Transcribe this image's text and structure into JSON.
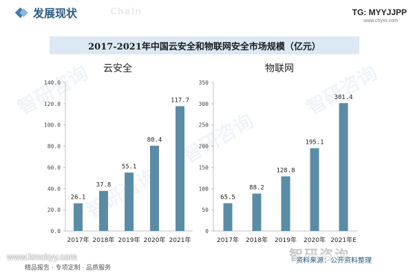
{
  "header": {
    "section_title": "发展现状",
    "watermark_chain": "Chain",
    "tg_label": "TG: MYYJJPP",
    "site": "www.chyxx.com"
  },
  "chart_title": "2017-2021年中国云安全和物联网安全市场规模（亿元）",
  "watermark": "智研咨询",
  "footer": {
    "left_url": "www.kmckyy.com",
    "left_tagline": "精品报告 · 专项定制 · 品质服务",
    "brand": "智研咨询",
    "source": "资料来源：公开资料整理"
  },
  "colors": {
    "bar": "#5b8ca6",
    "axis": "#bfbfbf",
    "title_bg": "#dce9f5"
  },
  "chart_data": [
    {
      "type": "bar",
      "title": "云安全",
      "categories": [
        "2017年",
        "2018年",
        "2019年",
        "2020年",
        "2021年"
      ],
      "values": [
        26.1,
        37.8,
        55.1,
        80.4,
        117.7
      ],
      "value_labels": [
        "26.1",
        "37.8",
        "55.1",
        "80.4",
        "117.7"
      ],
      "ylim": [
        0,
        140
      ],
      "yticks": [
        "0.0",
        "20.0",
        "40.0",
        "60.0",
        "80.0",
        "100.0",
        "120.0",
        "140.0"
      ],
      "grid": false
    },
    {
      "type": "bar",
      "title": "物联网",
      "categories": [
        "2017年",
        "2018年",
        "2019年",
        "2020年",
        "2021年E"
      ],
      "values": [
        65.5,
        88.2,
        128.8,
        195.1,
        301.4
      ],
      "value_labels": [
        "65.5",
        "88.2",
        "128.8",
        "195.1",
        "301.4"
      ],
      "ylim": [
        0,
        350
      ],
      "yticks": [
        "0",
        "50",
        "100",
        "150",
        "200",
        "250",
        "300",
        "350"
      ],
      "grid": false
    }
  ]
}
